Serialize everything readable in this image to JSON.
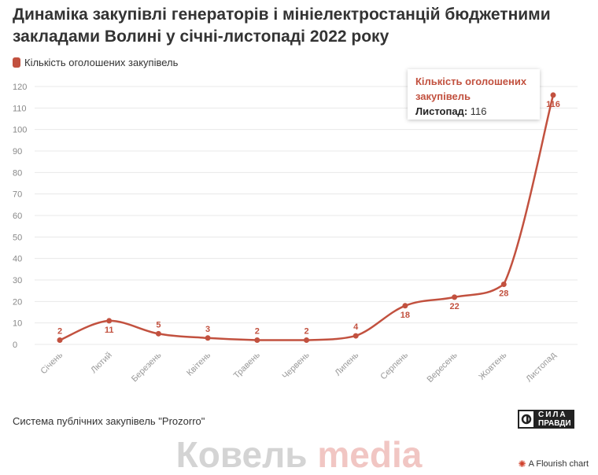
{
  "chart_data": {
    "type": "line",
    "title": "Динаміка закупівлі генераторів і мініелектростанцій бюджетними закладами Волині у січні-листопаді 2022 року",
    "categories": [
      "Січень",
      "Лютий",
      "Березень",
      "Квітень",
      "Травень",
      "Червень",
      "Липень",
      "Серпень",
      "Вересень",
      "Жовтень",
      "Листопад"
    ],
    "series": [
      {
        "name": "Кількість оголошених закупівель",
        "values": [
          2,
          11,
          5,
          3,
          2,
          2,
          4,
          18,
          22,
          28,
          116
        ],
        "color": "#c2513f"
      }
    ],
    "ylim": [
      0,
      120
    ],
    "yticks": [
      0,
      10,
      20,
      30,
      40,
      50,
      60,
      70,
      80,
      90,
      100,
      110,
      120
    ],
    "grid": true,
    "legend": "top-left"
  },
  "tooltip": {
    "series": "Кількість оголошених закупівель",
    "label": "Листопад:",
    "value": "116"
  },
  "source": "Система публічних закупівель \"Prozorro\"",
  "logo": {
    "line1": "СИЛА",
    "line2": "ПРАВДИ"
  },
  "watermark": {
    "part1": "Ковель ",
    "part2": "media"
  },
  "flourish": "A Flourish chart"
}
